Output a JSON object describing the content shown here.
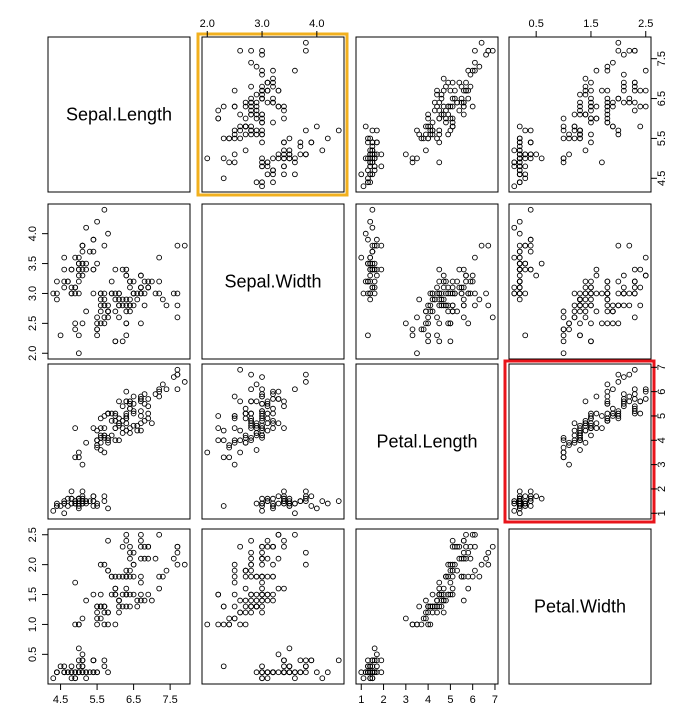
{
  "chart_data": {
    "type": "scatter",
    "variables": [
      "Sepal.Length",
      "Sepal.Width",
      "Petal.Length",
      "Petal.Width"
    ],
    "ranges": {
      "Sepal.Length": [
        4.3,
        7.9
      ],
      "Sepal.Width": [
        2.0,
        4.4
      ],
      "Petal.Length": [
        1.0,
        6.9
      ],
      "Petal.Width": [
        0.1,
        2.5
      ]
    },
    "ticks": {
      "Sepal.Length": [
        "4.5",
        "5.5",
        "6.5",
        "7.5"
      ],
      "Sepal.Width": [
        "2.0",
        "3.0",
        "4.0"
      ],
      "Sepal.Width.alt": [
        "2.0",
        "2.5",
        "3.0",
        "3.5",
        "4.0"
      ],
      "Petal.Length": [
        "1",
        "2",
        "3",
        "4",
        "5",
        "6",
        "7"
      ],
      "Petal.Width": [
        "0.5",
        "1.5",
        "2.5"
      ],
      "Petal.Width.alt": [
        "0.5",
        "1.0",
        "1.5",
        "2.0",
        "2.5"
      ],
      "Sepal.Length.alt": [
        "4.5",
        "5.5",
        "6.5",
        "7.5"
      ]
    },
    "highlights": [
      {
        "row": 0,
        "col": 1,
        "color": "#f2b01e"
      },
      {
        "row": 2,
        "col": 3,
        "color": "#e8141b"
      }
    ],
    "points": [
      [
        5.1,
        3.5,
        1.4,
        0.2
      ],
      [
        4.9,
        3.0,
        1.4,
        0.2
      ],
      [
        4.7,
        3.2,
        1.3,
        0.2
      ],
      [
        4.6,
        3.1,
        1.5,
        0.2
      ],
      [
        5.0,
        3.6,
        1.4,
        0.2
      ],
      [
        5.4,
        3.9,
        1.7,
        0.4
      ],
      [
        4.6,
        3.4,
        1.4,
        0.3
      ],
      [
        5.0,
        3.4,
        1.5,
        0.2
      ],
      [
        4.4,
        2.9,
        1.4,
        0.2
      ],
      [
        4.9,
        3.1,
        1.5,
        0.1
      ],
      [
        5.4,
        3.7,
        1.5,
        0.2
      ],
      [
        4.8,
        3.4,
        1.6,
        0.2
      ],
      [
        4.8,
        3.0,
        1.4,
        0.1
      ],
      [
        4.3,
        3.0,
        1.1,
        0.1
      ],
      [
        5.8,
        4.0,
        1.2,
        0.2
      ],
      [
        5.7,
        4.4,
        1.5,
        0.4
      ],
      [
        5.4,
        3.9,
        1.3,
        0.4
      ],
      [
        5.1,
        3.5,
        1.4,
        0.3
      ],
      [
        5.7,
        3.8,
        1.7,
        0.3
      ],
      [
        5.1,
        3.8,
        1.5,
        0.3
      ],
      [
        5.4,
        3.4,
        1.7,
        0.2
      ],
      [
        5.1,
        3.7,
        1.5,
        0.4
      ],
      [
        4.6,
        3.6,
        1.0,
        0.2
      ],
      [
        5.1,
        3.3,
        1.7,
        0.5
      ],
      [
        4.8,
        3.4,
        1.9,
        0.2
      ],
      [
        5.0,
        3.0,
        1.6,
        0.2
      ],
      [
        5.0,
        3.4,
        1.6,
        0.4
      ],
      [
        5.2,
        3.5,
        1.5,
        0.2
      ],
      [
        5.2,
        3.4,
        1.4,
        0.2
      ],
      [
        4.7,
        3.2,
        1.6,
        0.2
      ],
      [
        4.8,
        3.1,
        1.6,
        0.2
      ],
      [
        5.4,
        3.4,
        1.5,
        0.4
      ],
      [
        5.2,
        4.1,
        1.5,
        0.1
      ],
      [
        5.5,
        4.2,
        1.4,
        0.2
      ],
      [
        4.9,
        3.1,
        1.5,
        0.2
      ],
      [
        5.0,
        3.2,
        1.2,
        0.2
      ],
      [
        5.5,
        3.5,
        1.3,
        0.2
      ],
      [
        4.9,
        3.6,
        1.4,
        0.1
      ],
      [
        4.4,
        3.0,
        1.3,
        0.2
      ],
      [
        5.1,
        3.4,
        1.5,
        0.2
      ],
      [
        5.0,
        3.5,
        1.3,
        0.3
      ],
      [
        4.5,
        2.3,
        1.3,
        0.3
      ],
      [
        4.4,
        3.2,
        1.3,
        0.2
      ],
      [
        5.0,
        3.5,
        1.6,
        0.6
      ],
      [
        5.1,
        3.8,
        1.9,
        0.4
      ],
      [
        4.8,
        3.0,
        1.4,
        0.3
      ],
      [
        5.1,
        3.8,
        1.6,
        0.2
      ],
      [
        4.6,
        3.2,
        1.4,
        0.2
      ],
      [
        5.3,
        3.7,
        1.5,
        0.2
      ],
      [
        5.0,
        3.3,
        1.4,
        0.2
      ],
      [
        7.0,
        3.2,
        4.7,
        1.4
      ],
      [
        6.4,
        3.2,
        4.5,
        1.5
      ],
      [
        6.9,
        3.1,
        4.9,
        1.5
      ],
      [
        5.5,
        2.3,
        4.0,
        1.3
      ],
      [
        6.5,
        2.8,
        4.6,
        1.5
      ],
      [
        5.7,
        2.8,
        4.5,
        1.3
      ],
      [
        6.3,
        3.3,
        4.7,
        1.6
      ],
      [
        4.9,
        2.4,
        3.3,
        1.0
      ],
      [
        6.6,
        2.9,
        4.6,
        1.3
      ],
      [
        5.2,
        2.7,
        3.9,
        1.4
      ],
      [
        5.0,
        2.0,
        3.5,
        1.0
      ],
      [
        5.9,
        3.0,
        4.2,
        1.5
      ],
      [
        6.0,
        2.2,
        4.0,
        1.0
      ],
      [
        6.1,
        2.9,
        4.7,
        1.4
      ],
      [
        5.6,
        2.9,
        3.6,
        1.3
      ],
      [
        6.7,
        3.1,
        4.4,
        1.4
      ],
      [
        5.6,
        3.0,
        4.5,
        1.5
      ],
      [
        5.8,
        2.7,
        4.1,
        1.0
      ],
      [
        6.2,
        2.2,
        4.5,
        1.5
      ],
      [
        5.6,
        2.5,
        3.9,
        1.1
      ],
      [
        5.9,
        3.2,
        4.8,
        1.8
      ],
      [
        6.1,
        2.8,
        4.0,
        1.3
      ],
      [
        6.3,
        2.5,
        4.9,
        1.5
      ],
      [
        6.1,
        2.8,
        4.7,
        1.2
      ],
      [
        6.4,
        2.9,
        4.3,
        1.3
      ],
      [
        6.6,
        3.0,
        4.4,
        1.4
      ],
      [
        6.8,
        2.8,
        4.8,
        1.4
      ],
      [
        6.7,
        3.0,
        5.0,
        1.7
      ],
      [
        6.0,
        2.9,
        4.5,
        1.5
      ],
      [
        5.7,
        2.6,
        3.5,
        1.0
      ],
      [
        5.5,
        2.4,
        3.8,
        1.1
      ],
      [
        5.5,
        2.4,
        3.7,
        1.0
      ],
      [
        5.8,
        2.7,
        3.9,
        1.2
      ],
      [
        6.0,
        2.7,
        5.1,
        1.6
      ],
      [
        5.4,
        3.0,
        4.5,
        1.5
      ],
      [
        6.0,
        3.4,
        4.5,
        1.6
      ],
      [
        6.7,
        3.1,
        4.7,
        1.5
      ],
      [
        6.3,
        2.3,
        4.4,
        1.3
      ],
      [
        5.6,
        3.0,
        4.1,
        1.3
      ],
      [
        5.5,
        2.5,
        4.0,
        1.3
      ],
      [
        5.5,
        2.6,
        4.4,
        1.2
      ],
      [
        6.1,
        3.0,
        4.6,
        1.4
      ],
      [
        5.8,
        2.6,
        4.0,
        1.2
      ],
      [
        5.0,
        2.3,
        3.3,
        1.0
      ],
      [
        5.6,
        2.7,
        4.2,
        1.3
      ],
      [
        5.7,
        3.0,
        4.2,
        1.2
      ],
      [
        5.7,
        2.9,
        4.2,
        1.3
      ],
      [
        6.2,
        2.9,
        4.3,
        1.3
      ],
      [
        5.1,
        2.5,
        3.0,
        1.1
      ],
      [
        5.7,
        2.8,
        4.1,
        1.3
      ],
      [
        6.3,
        3.3,
        6.0,
        2.5
      ],
      [
        5.8,
        2.7,
        5.1,
        1.9
      ],
      [
        7.1,
        3.0,
        5.9,
        2.1
      ],
      [
        6.3,
        2.9,
        5.6,
        1.8
      ],
      [
        6.5,
        3.0,
        5.8,
        2.2
      ],
      [
        7.6,
        3.0,
        6.6,
        2.1
      ],
      [
        4.9,
        2.5,
        4.5,
        1.7
      ],
      [
        7.3,
        2.9,
        6.3,
        1.8
      ],
      [
        6.7,
        2.5,
        5.8,
        1.8
      ],
      [
        7.2,
        3.6,
        6.1,
        2.5
      ],
      [
        6.5,
        3.2,
        5.1,
        2.0
      ],
      [
        6.4,
        2.7,
        5.3,
        1.9
      ],
      [
        6.8,
        3.0,
        5.5,
        2.1
      ],
      [
        5.7,
        2.5,
        5.0,
        2.0
      ],
      [
        5.8,
        2.8,
        5.1,
        2.4
      ],
      [
        6.4,
        3.2,
        5.3,
        2.3
      ],
      [
        6.5,
        3.0,
        5.5,
        1.8
      ],
      [
        7.7,
        3.8,
        6.7,
        2.2
      ],
      [
        7.7,
        2.6,
        6.9,
        2.3
      ],
      [
        6.0,
        2.2,
        5.0,
        1.5
      ],
      [
        6.9,
        3.2,
        5.7,
        2.3
      ],
      [
        5.6,
        2.8,
        4.9,
        2.0
      ],
      [
        7.7,
        2.8,
        6.7,
        2.0
      ],
      [
        6.3,
        2.7,
        4.9,
        1.8
      ],
      [
        6.7,
        3.3,
        5.7,
        2.1
      ],
      [
        7.2,
        3.2,
        6.0,
        1.8
      ],
      [
        6.2,
        2.8,
        4.8,
        1.8
      ],
      [
        6.1,
        3.0,
        4.9,
        1.8
      ],
      [
        6.4,
        2.8,
        5.6,
        2.1
      ],
      [
        7.2,
        3.0,
        5.8,
        1.6
      ],
      [
        7.4,
        2.8,
        6.1,
        1.9
      ],
      [
        7.9,
        3.8,
        6.4,
        2.0
      ],
      [
        6.4,
        2.8,
        5.6,
        2.2
      ],
      [
        6.3,
        2.8,
        5.1,
        1.5
      ],
      [
        6.1,
        2.6,
        5.6,
        1.4
      ],
      [
        7.7,
        3.0,
        6.1,
        2.3
      ],
      [
        6.3,
        3.4,
        5.6,
        2.4
      ],
      [
        6.4,
        3.1,
        5.5,
        1.8
      ],
      [
        6.0,
        3.0,
        4.8,
        1.8
      ],
      [
        6.9,
        3.1,
        5.4,
        2.1
      ],
      [
        6.7,
        3.1,
        5.6,
        2.4
      ],
      [
        6.9,
        3.1,
        5.1,
        2.3
      ],
      [
        5.8,
        2.7,
        5.1,
        1.9
      ],
      [
        6.8,
        3.2,
        5.9,
        2.3
      ],
      [
        6.7,
        3.3,
        5.7,
        2.5
      ],
      [
        6.7,
        3.0,
        5.2,
        2.3
      ],
      [
        6.3,
        2.5,
        5.0,
        1.9
      ],
      [
        6.5,
        3.0,
        5.2,
        2.0
      ],
      [
        6.2,
        3.4,
        5.4,
        2.3
      ],
      [
        5.9,
        3.0,
        5.1,
        1.8
      ]
    ]
  }
}
